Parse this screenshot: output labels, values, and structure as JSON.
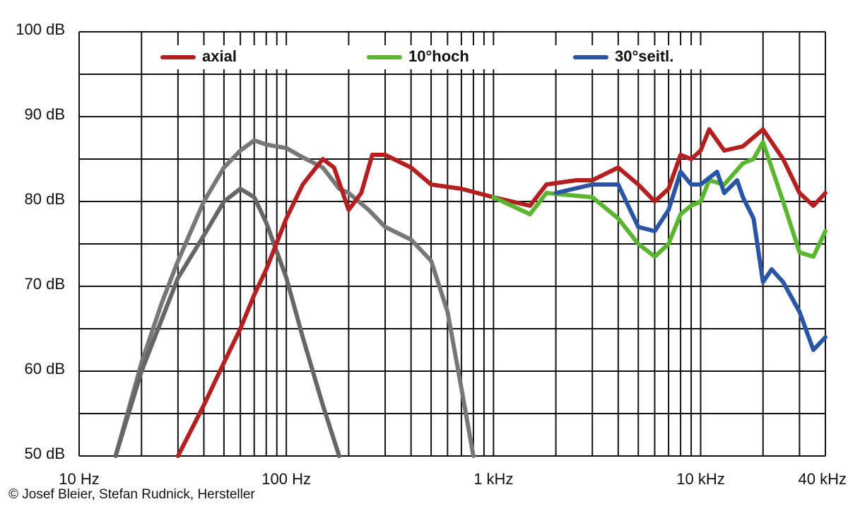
{
  "chart_data": {
    "type": "line",
    "xscale": "log",
    "xlim": [
      10,
      40000
    ],
    "ylim": [
      50,
      100
    ],
    "xticks": [
      {
        "value": 10,
        "label": "10 Hz"
      },
      {
        "value": 100,
        "label": "100 Hz"
      },
      {
        "value": 1000,
        "label": "1 kHz"
      },
      {
        "value": 10000,
        "label": "10 kHz"
      },
      {
        "value": 40000,
        "label": "40 kHz"
      }
    ],
    "yticks": [
      {
        "value": 50,
        "label": "50 dB"
      },
      {
        "value": 60,
        "label": "60 dB"
      },
      {
        "value": 70,
        "label": "70 dB"
      },
      {
        "value": 80,
        "label": "80 dB"
      },
      {
        "value": 90,
        "label": "90 dB"
      },
      {
        "value": 100,
        "label": "100 dB"
      }
    ],
    "x_grid": [
      20,
      30,
      40,
      50,
      60,
      70,
      80,
      90,
      200,
      300,
      400,
      500,
      600,
      700,
      800,
      900,
      2000,
      3000,
      4000,
      5000,
      6000,
      7000,
      8000,
      9000,
      20000,
      30000
    ],
    "y_minor_grid": [
      55,
      65,
      75,
      85,
      95
    ],
    "grid": true,
    "legend": "top",
    "series": [
      {
        "color": "#777777",
        "x": [
          15,
          20,
          25,
          30,
          40,
          50,
          60,
          70,
          80,
          100,
          120,
          150,
          180,
          200,
          250,
          300,
          400,
          500,
          600,
          700,
          800
        ],
        "values": [
          50,
          61,
          68,
          73,
          80,
          84,
          86,
          87.2,
          86.7,
          86.3,
          85.2,
          84,
          81.5,
          81,
          79,
          77,
          75.5,
          73,
          67,
          58,
          50
        ]
      },
      {
        "color": "#666666",
        "x": [
          15,
          20,
          30,
          40,
          50,
          60,
          70,
          80,
          100,
          120,
          150,
          180
        ],
        "values": [
          50,
          60,
          71,
          76,
          80,
          81.5,
          80.5,
          77.5,
          71,
          64,
          56,
          50
        ]
      },
      {
        "name": "axial",
        "color": "#b3201f",
        "x": [
          30,
          40,
          50,
          60,
          70,
          80,
          100,
          120,
          150,
          170,
          200,
          230,
          260,
          300,
          400,
          500,
          700,
          1000,
          1500,
          1800,
          2500,
          3000,
          4000,
          5000,
          6000,
          7000,
          8000,
          9000,
          10000,
          11000,
          13000,
          16000,
          20000,
          25000,
          30000,
          35000,
          40000
        ],
        "values": [
          50,
          56,
          61,
          65,
          69,
          72,
          78,
          82,
          85,
          84,
          79,
          81,
          85.5,
          85.5,
          84,
          82,
          81.5,
          80.5,
          79.5,
          82,
          82.5,
          82.5,
          84,
          82,
          80,
          81.5,
          85.5,
          85,
          86,
          88.5,
          86,
          86.5,
          88.5,
          85,
          81,
          79.5,
          81
        ]
      },
      {
        "name": "10°hoch",
        "color": "#5ab530",
        "x": [
          1000,
          1500,
          1800,
          3000,
          4000,
          5000,
          6000,
          7000,
          8000,
          9000,
          10000,
          11000,
          13000,
          16000,
          18000,
          20000,
          25000,
          30000,
          35000,
          40000
        ],
        "values": [
          80.5,
          78.5,
          81,
          80.5,
          78,
          75,
          73.5,
          75,
          78.5,
          79.5,
          80,
          82.5,
          82,
          84.5,
          85,
          87,
          80,
          74,
          73.5,
          76.5
        ]
      },
      {
        "name": "30°seitl.",
        "color": "#2a55a5",
        "x": [
          2000,
          3000,
          4000,
          5000,
          6000,
          7000,
          8000,
          9000,
          10000,
          12000,
          13000,
          15000,
          16000,
          18000,
          20000,
          22000,
          25000,
          30000,
          35000,
          40000
        ],
        "values": [
          81,
          82,
          82,
          77,
          76.5,
          79,
          83.5,
          82,
          82,
          83.5,
          81,
          82.5,
          80.5,
          78,
          70.5,
          72,
          70.5,
          67,
          62.5,
          64
        ]
      }
    ]
  },
  "credit": "© Josef Bleier, Stefan Rudnick, Hersteller"
}
